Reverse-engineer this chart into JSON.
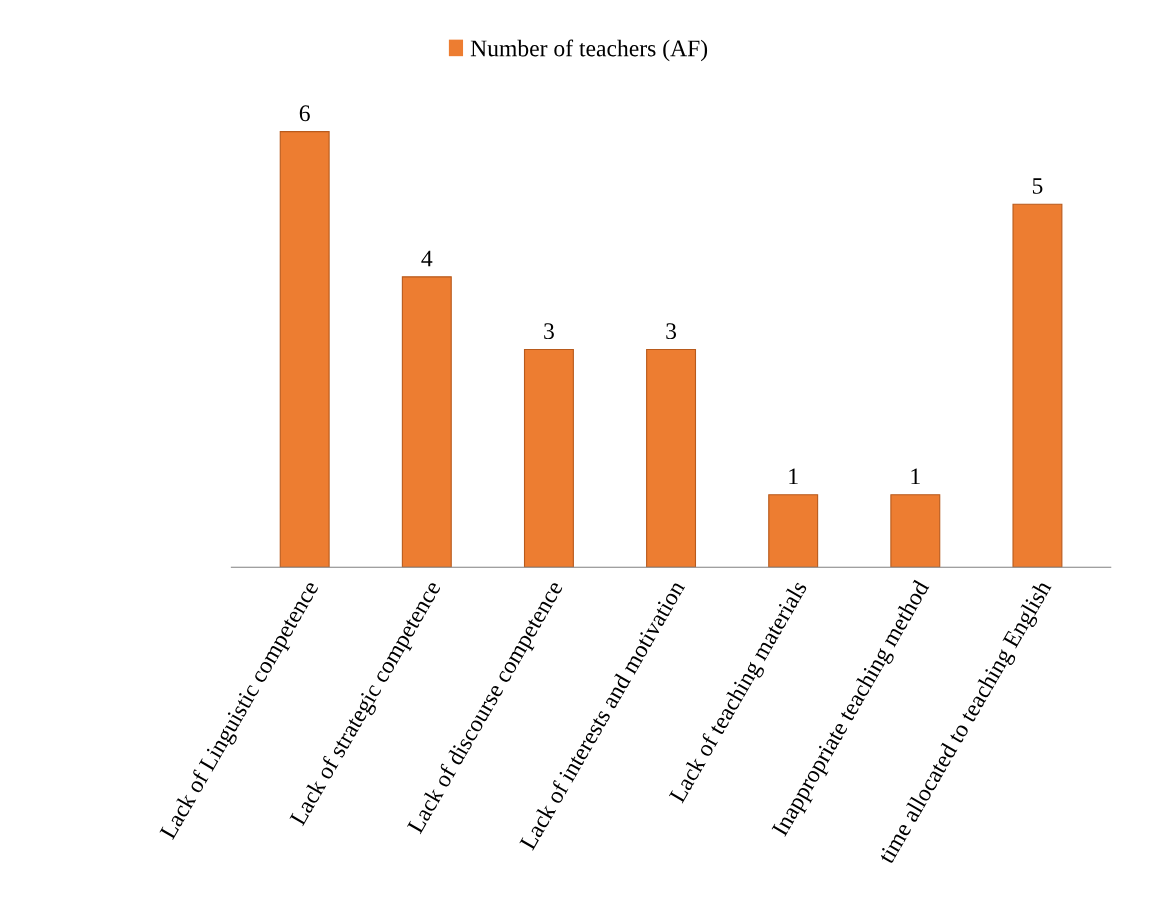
{
  "chart_data": {
    "type": "bar",
    "categories": [
      "Lack of Linguistic competence",
      "Lack of strategic competence",
      "Lack of discourse competence",
      "Lack of interests and motivation",
      "Lack of teaching materials",
      "Inappropriate teaching method",
      "time allocated to teaching English"
    ],
    "series": [
      {
        "name": "Number of teachers (AF)",
        "color": "#ed7d31",
        "values": [
          6,
          4,
          3,
          3,
          1,
          1,
          5
        ]
      }
    ],
    "data_labels": true,
    "legend": "top",
    "grid": false
  }
}
